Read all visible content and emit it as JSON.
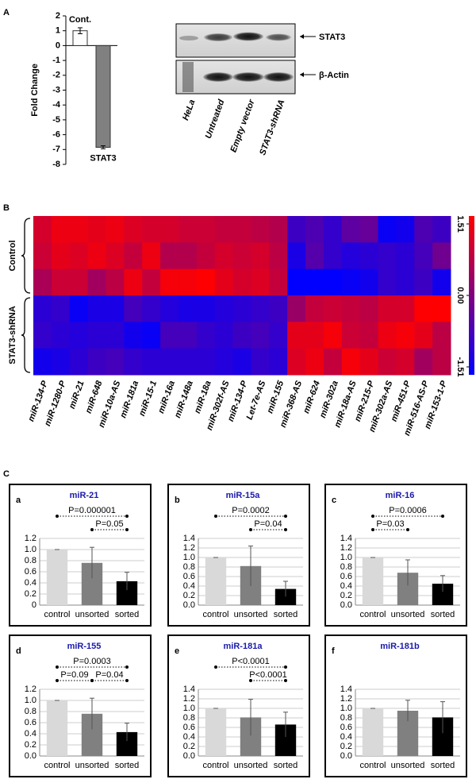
{
  "panel_labels": [
    "A",
    "B",
    "C"
  ],
  "blot": {
    "targets": [
      "STAT3",
      "β-Actin"
    ],
    "lanes": [
      "HeLa",
      "Untreated",
      "Empty vector",
      "STAT3-shRNA"
    ]
  },
  "chart_data": [
    {
      "type": "bar",
      "y_label": "Fold Change",
      "categories": [
        "Cont.",
        "STAT3"
      ],
      "values": [
        1,
        -6.85
      ],
      "errors": [
        0.2,
        0.1
      ],
      "colors": [
        "#ffffff",
        "#808080"
      ],
      "ylim": [
        -8,
        2
      ],
      "yticks": [
        -8,
        -7,
        -6,
        -5,
        -4,
        -3,
        -2,
        -1,
        0,
        1,
        2
      ]
    },
    {
      "type": "heatmap",
      "columns": [
        "miR-134-P",
        "miR-1280-P",
        "miR-21",
        "miR-648",
        "miR-10a-AS",
        "miR-181a",
        "miR-15-1",
        "miR-16a",
        "miR-148a",
        "miR-18a",
        "miR-302f-AS",
        "miR-134-P",
        "Let-7e-AS",
        "miR-155",
        "miR-368-AS",
        "miR-624",
        "miR-302a",
        "miR-18a-AS",
        "miR-215-P",
        "miR-302a-AS",
        "miR-451-P",
        "miR-516-AS-P",
        "miR-153-1-P"
      ],
      "groups": [
        {
          "name": "Control",
          "values": [
            [
              1.0,
              1.3,
              1.3,
              1.2,
              1.3,
              1.1,
              1.0,
              1.0,
              0.9,
              0.9,
              0.8,
              0.8,
              0.7,
              0.6,
              -0.8,
              -0.6,
              -0.9,
              -0.4,
              -0.3,
              -1.4,
              -1.3,
              -0.6,
              -0.8
            ],
            [
              0.9,
              1.2,
              1.1,
              1.3,
              1.1,
              0.8,
              1.3,
              0.6,
              0.6,
              0.8,
              1.0,
              0.9,
              1.0,
              0.7,
              -1.2,
              -0.5,
              -0.9,
              -1.1,
              -1.0,
              -0.9,
              -1.0,
              -0.7,
              -0.2
            ],
            [
              0.5,
              0.9,
              0.9,
              0.4,
              0.7,
              1.3,
              0.8,
              1.4,
              1.4,
              1.5,
              1.2,
              1.0,
              1.1,
              0.8,
              -1.5,
              -1.5,
              -1.5,
              -1.4,
              -1.3,
              -0.9,
              -1.0,
              -0.8,
              -1.3
            ]
          ]
        },
        {
          "name": "STAT3-shRNA",
          "values": [
            [
              -1.0,
              -0.9,
              -1.4,
              -1.2,
              -1.2,
              -0.7,
              -0.9,
              -1.1,
              -1.2,
              -1.2,
              -1.1,
              -1.0,
              -0.9,
              -0.8,
              0.3,
              0.8,
              0.9,
              0.8,
              0.7,
              1.0,
              1.0,
              1.5,
              1.5
            ],
            [
              -0.9,
              -1.0,
              -1.1,
              -1.0,
              -1.0,
              -1.3,
              -1.4,
              -0.7,
              -0.7,
              -0.9,
              -1.0,
              -0.8,
              -0.7,
              -0.9,
              1.2,
              1.2,
              1.4,
              0.9,
              0.8,
              1.3,
              1.4,
              1.2,
              0.7
            ],
            [
              -1.3,
              -1.2,
              -1.0,
              -0.8,
              -0.7,
              -0.9,
              -1.0,
              -1.0,
              -1.0,
              -1.0,
              -1.1,
              -1.2,
              -0.9,
              -1.0,
              1.1,
              1.3,
              0.8,
              1.4,
              1.2,
              0.9,
              1.0,
              0.4,
              0.7
            ]
          ]
        }
      ],
      "zlim": [
        -1.51,
        1.51
      ],
      "zticks": [
        1.51,
        {
          "value": 0,
          "label": "0.00"
        },
        -1.51
      ],
      "colorscale": [
        "#0000ff",
        "#ff0000"
      ]
    },
    {
      "type": "bar",
      "letter": "a",
      "title": "miR-21",
      "categories": [
        "control",
        "unsorted",
        "sorted"
      ],
      "values": [
        1,
        0.76,
        0.43
      ],
      "errors": [
        0,
        0.28,
        0.16
      ],
      "colors": [
        "#d9d9d9",
        "#808080",
        "#000000"
      ],
      "ylim": [
        0,
        1.2
      ],
      "yticks": [
        0,
        {
          "value": 0.2,
          "label": "0.2"
        },
        {
          "value": 0.4,
          "label": "0.4"
        },
        {
          "value": 0.6,
          "label": "0.6"
        },
        {
          "value": 0.8,
          "label": "0.8"
        },
        {
          "value": 1,
          "label": "1.0"
        },
        {
          "value": 1.2,
          "label": "1.2"
        }
      ],
      "comparisons": [
        {
          "label": "P=0.000001",
          "categories": [
            "control",
            "sorted"
          ]
        },
        {
          "label": "P=0.05",
          "categories": [
            "unsorted",
            "sorted"
          ]
        }
      ]
    },
    {
      "type": "bar",
      "letter": "b",
      "title": "miR-15a",
      "categories": [
        "control",
        "unsorted",
        "sorted"
      ],
      "values": [
        1,
        0.82,
        0.34
      ],
      "errors": [
        0,
        0.42,
        0.16
      ],
      "colors": [
        "#d9d9d9",
        "#808080",
        "#000000"
      ],
      "ylim": [
        0,
        1.4
      ],
      "yticks": [
        {
          "value": 0,
          "label": "0.0"
        },
        {
          "value": 0.2,
          "label": "0.2"
        },
        {
          "value": 0.4,
          "label": "0.4"
        },
        {
          "value": 0.6,
          "label": "0.6"
        },
        {
          "value": 0.8,
          "label": "0.8"
        },
        {
          "value": 1,
          "label": "1.0"
        },
        {
          "value": 1.2,
          "label": "1.2"
        },
        {
          "value": 1.4,
          "label": "1.4"
        }
      ],
      "comparisons": [
        {
          "label": "P=0.0002",
          "categories": [
            "control",
            "sorted"
          ]
        },
        {
          "label": "P=0.04",
          "categories": [
            "unsorted",
            "sorted"
          ]
        }
      ]
    },
    {
      "type": "bar",
      "letter": "c",
      "title": "miR-16",
      "categories": [
        "control",
        "unsorted",
        "sorted"
      ],
      "values": [
        1,
        0.68,
        0.45
      ],
      "errors": [
        0,
        0.27,
        0.17
      ],
      "colors": [
        "#d9d9d9",
        "#808080",
        "#000000"
      ],
      "ylim": [
        0,
        1.4
      ],
      "yticks": [
        {
          "value": 0,
          "label": "0.0"
        },
        {
          "value": 0.2,
          "label": "0.2"
        },
        {
          "value": 0.4,
          "label": "0.4"
        },
        {
          "value": 0.6,
          "label": "0.6"
        },
        {
          "value": 0.8,
          "label": "0.8"
        },
        {
          "value": 1,
          "label": "1.0"
        },
        {
          "value": 1.2,
          "label": "1.2"
        },
        {
          "value": 1.4,
          "label": "1.4"
        }
      ],
      "comparisons": [
        {
          "label": "P=0.0006",
          "categories": [
            "control",
            "sorted"
          ]
        },
        {
          "label": "P=0.03",
          "categories": [
            "control",
            "unsorted"
          ]
        }
      ]
    },
    {
      "type": "bar",
      "letter": "d",
      "title": "miR-155",
      "categories": [
        "control",
        "unsorted",
        "sorted"
      ],
      "values": [
        1,
        0.76,
        0.43
      ],
      "errors": [
        0,
        0.28,
        0.16
      ],
      "colors": [
        "#d9d9d9",
        "#808080",
        "#000000"
      ],
      "ylim": [
        0,
        1.2
      ],
      "yticks": [
        {
          "value": 0,
          "label": "0.0"
        },
        {
          "value": 0.2,
          "label": "0.2"
        },
        {
          "value": 0.4,
          "label": "0.4"
        },
        {
          "value": 0.6,
          "label": "0.6"
        },
        {
          "value": 0.8,
          "label": "0.8"
        },
        {
          "value": 1,
          "label": "1.0"
        },
        {
          "value": 1.2,
          "label": "1.2"
        }
      ],
      "comparisons": [
        {
          "label": "P=0.0003",
          "categories": [
            "control",
            "sorted"
          ]
        },
        {
          "label": "P=0.09",
          "categories": [
            "control",
            "unsorted"
          ]
        },
        {
          "label": "P=0.04",
          "categories": [
            "unsorted",
            "sorted"
          ]
        }
      ]
    },
    {
      "type": "bar",
      "letter": "e",
      "title": "miR-181a",
      "categories": [
        "control",
        "unsorted",
        "sorted"
      ],
      "values": [
        1,
        0.81,
        0.66
      ],
      "errors": [
        0,
        0.38,
        0.26
      ],
      "colors": [
        "#d9d9d9",
        "#808080",
        "#000000"
      ],
      "ylim": [
        0,
        1.4
      ],
      "yticks": [
        {
          "value": 0,
          "label": "0.0"
        },
        {
          "value": 0.2,
          "label": "0.2"
        },
        {
          "value": 0.4,
          "label": "0.4"
        },
        {
          "value": 0.6,
          "label": "0.6"
        },
        {
          "value": 0.8,
          "label": "0.8"
        },
        {
          "value": 1,
          "label": "1.0"
        },
        {
          "value": 1.2,
          "label": "1.2"
        },
        {
          "value": 1.4,
          "label": "1.4"
        }
      ],
      "comparisons": [
        {
          "label": "P<0.0001",
          "categories": [
            "control",
            "sorted"
          ]
        },
        {
          "label": "P<0.0001",
          "categories": [
            "unsorted",
            "sorted"
          ]
        }
      ]
    },
    {
      "type": "bar",
      "letter": "f",
      "title": "miR-181b",
      "categories": [
        "control",
        "unsorted",
        "sorted"
      ],
      "values": [
        1,
        0.95,
        0.81
      ],
      "errors": [
        0,
        0.22,
        0.33
      ],
      "colors": [
        "#d9d9d9",
        "#808080",
        "#000000"
      ],
      "ylim": [
        0,
        1.4
      ],
      "yticks": [
        {
          "value": 0,
          "label": "0.0"
        },
        {
          "value": 0.2,
          "label": "0.2"
        },
        {
          "value": 0.4,
          "label": "0.4"
        },
        {
          "value": 0.6,
          "label": "0.6"
        },
        {
          "value": 0.8,
          "label": "0.8"
        },
        {
          "value": 1,
          "label": "1.0"
        },
        {
          "value": 1.2,
          "label": "1.2"
        },
        {
          "value": 1.4,
          "label": "1.4"
        }
      ],
      "comparisons": []
    }
  ]
}
